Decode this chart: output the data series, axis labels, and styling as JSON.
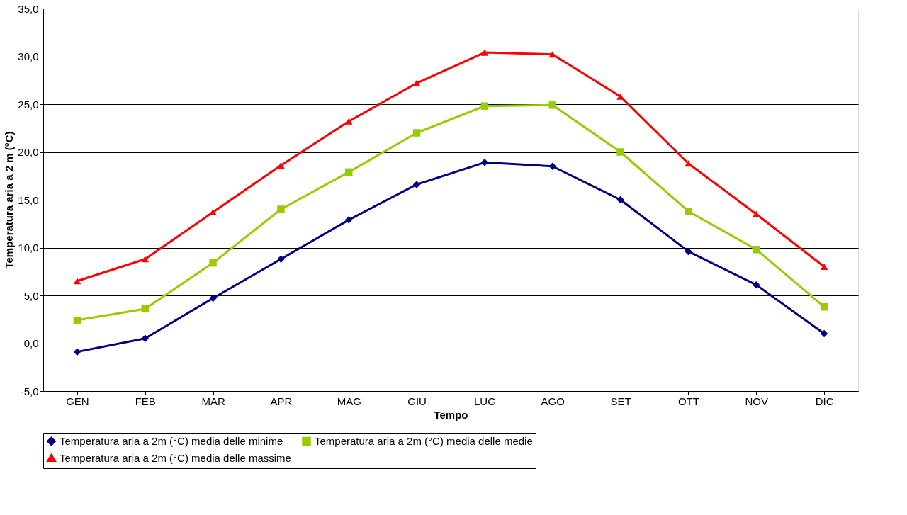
{
  "chart_data": {
    "type": "line",
    "xlabel": "Tempo",
    "ylabel": "Temperatura aria a 2 m (°C)",
    "categories": [
      "GEN",
      "FEB",
      "MAR",
      "APR",
      "MAG",
      "GIU",
      "LUG",
      "AGO",
      "SET",
      "OTT",
      "NOV",
      "DIC"
    ],
    "series": [
      {
        "name": "Temperatura aria a 2m (°C) media delle minime",
        "color": "#000080",
        "marker": "diamond",
        "values": [
          -0.9,
          0.5,
          4.7,
          8.8,
          12.9,
          16.6,
          18.9,
          18.5,
          15.0,
          9.6,
          6.1,
          1.0
        ]
      },
      {
        "name": "Temperatura aria a 2m (°C) media delle medie",
        "color": "#99cc00",
        "marker": "square",
        "values": [
          2.4,
          3.6,
          8.4,
          14.0,
          17.9,
          22.0,
          24.8,
          24.9,
          20.0,
          13.8,
          9.8,
          3.8
        ]
      },
      {
        "name": "Temperatura aria a 2m (°C) media delle massime",
        "color": "#ff0000",
        "marker": "triangle",
        "values": [
          6.5,
          8.8,
          13.7,
          18.6,
          23.2,
          27.2,
          30.4,
          30.2,
          25.8,
          18.8,
          13.5,
          8.0
        ]
      }
    ],
    "ylim": [
      -5,
      35
    ],
    "yticks": [
      {
        "value": -5,
        "label": "-5,0"
      },
      {
        "value": 0,
        "label": "0,0"
      },
      {
        "value": 5,
        "label": "5,0"
      },
      {
        "value": 10,
        "label": "10,0"
      },
      {
        "value": 15,
        "label": "15,0"
      },
      {
        "value": 20,
        "label": "20,0"
      },
      {
        "value": 25,
        "label": "25,0"
      },
      {
        "value": 30,
        "label": "30,0"
      },
      {
        "value": 35,
        "label": "35,0"
      }
    ],
    "grid": "y",
    "legend": "bottom",
    "line_style": "solid"
  }
}
